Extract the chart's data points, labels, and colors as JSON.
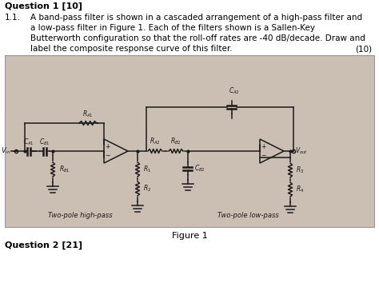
{
  "bg_color": "#ffffff",
  "circuit_bg": "#cbbfb4",
  "text_color": "#000000",
  "line_color": "#1a1a1a",
  "title": "Question 1 [10]",
  "q2": "Question 2 [21]",
  "body": [
    [
      "1.1.",
      "A band-pass filter is shown in a cascaded arrangement of a high-pass filter and"
    ],
    [
      "",
      "a low-pass filter in Figure 1. Each of the filters shown is a Sallen-Key"
    ],
    [
      "",
      "Butterworth configuration so that the roll-off rates are -40 dB/decade. Draw and"
    ],
    [
      "",
      "label the composite response curve of this filter."
    ]
  ],
  "mark": "(10)",
  "caption": "Figure 1",
  "label_hp": "Two-pole high-pass",
  "label_lp": "Two-pole low-pass"
}
